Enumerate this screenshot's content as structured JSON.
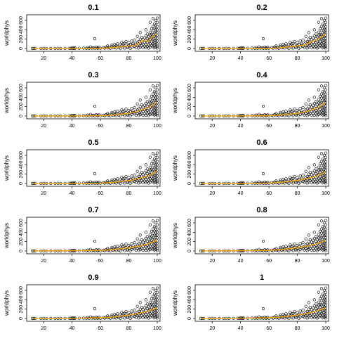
{
  "chart_data": {
    "type": "scatter",
    "ylabel": "worldphys",
    "xlim": [
      10,
      100
    ],
    "ylim": [
      0,
      660
    ],
    "xticks": [
      20,
      40,
      60,
      80,
      100
    ],
    "yticks": [
      0,
      200,
      400,
      600
    ],
    "colors": {
      "points": "#000000",
      "fit": "#ffa500",
      "frame": "#000000"
    },
    "panels": [
      {
        "title": "0.1",
        "fit": [
          [
            12,
            0
          ],
          [
            40,
            0
          ],
          [
            55,
            2
          ],
          [
            62,
            5
          ],
          [
            68,
            18
          ],
          [
            72,
            25
          ],
          [
            75,
            40
          ],
          [
            80,
            55
          ],
          [
            84,
            60
          ],
          [
            87,
            110
          ],
          [
            89,
            160
          ],
          [
            91,
            170
          ],
          [
            93,
            150
          ],
          [
            95,
            200
          ],
          [
            97,
            260
          ],
          [
            99,
            300
          ],
          [
            100,
            320
          ]
        ]
      },
      {
        "title": "0.2",
        "fit": [
          [
            12,
            0
          ],
          [
            40,
            0
          ],
          [
            56,
            3
          ],
          [
            64,
            8
          ],
          [
            70,
            22
          ],
          [
            75,
            40
          ],
          [
            80,
            55
          ],
          [
            85,
            75
          ],
          [
            88,
            120
          ],
          [
            90,
            150
          ],
          [
            92,
            160
          ],
          [
            95,
            210
          ],
          [
            97,
            250
          ],
          [
            100,
            310
          ]
        ]
      },
      {
        "title": "0.3",
        "fit": [
          [
            12,
            0
          ],
          [
            40,
            0
          ],
          [
            56,
            4
          ],
          [
            64,
            10
          ],
          [
            70,
            25
          ],
          [
            75,
            40
          ],
          [
            80,
            58
          ],
          [
            85,
            85
          ],
          [
            88,
            125
          ],
          [
            91,
            150
          ],
          [
            94,
            180
          ],
          [
            97,
            240
          ],
          [
            100,
            300
          ]
        ]
      },
      {
        "title": "0.4",
        "fit": [
          [
            12,
            0
          ],
          [
            40,
            2
          ],
          [
            56,
            5
          ],
          [
            64,
            12
          ],
          [
            70,
            28
          ],
          [
            76,
            45
          ],
          [
            82,
            65
          ],
          [
            86,
            95
          ],
          [
            89,
            125
          ],
          [
            92,
            150
          ],
          [
            95,
            190
          ],
          [
            98,
            250
          ],
          [
            100,
            290
          ]
        ]
      },
      {
        "title": "0.5",
        "fit": [
          [
            12,
            0
          ],
          [
            40,
            2
          ],
          [
            56,
            6
          ],
          [
            64,
            14
          ],
          [
            70,
            30
          ],
          [
            76,
            48
          ],
          [
            82,
            70
          ],
          [
            86,
            100
          ],
          [
            90,
            128
          ],
          [
            93,
            160
          ],
          [
            96,
            200
          ],
          [
            100,
            270
          ]
        ]
      },
      {
        "title": "0.6",
        "fit": [
          [
            12,
            0
          ],
          [
            40,
            3
          ],
          [
            56,
            8
          ],
          [
            64,
            16
          ],
          [
            70,
            32
          ],
          [
            76,
            50
          ],
          [
            82,
            75
          ],
          [
            87,
            105
          ],
          [
            91,
            135
          ],
          [
            95,
            175
          ],
          [
            100,
            250
          ]
        ]
      },
      {
        "title": "0.7",
        "fit": [
          [
            12,
            1
          ],
          [
            40,
            4
          ],
          [
            56,
            10
          ],
          [
            64,
            18
          ],
          [
            70,
            33
          ],
          [
            76,
            52
          ],
          [
            82,
            78
          ],
          [
            88,
            110
          ],
          [
            92,
            140
          ],
          [
            96,
            180
          ],
          [
            100,
            240
          ]
        ]
      },
      {
        "title": "0.8",
        "fit": [
          [
            12,
            1
          ],
          [
            40,
            5
          ],
          [
            56,
            11
          ],
          [
            64,
            20
          ],
          [
            70,
            35
          ],
          [
            76,
            54
          ],
          [
            82,
            80
          ],
          [
            88,
            112
          ],
          [
            92,
            142
          ],
          [
            96,
            182
          ],
          [
            100,
            230
          ]
        ]
      },
      {
        "title": "0.9",
        "fit": [
          [
            12,
            2
          ],
          [
            40,
            6
          ],
          [
            56,
            12
          ],
          [
            64,
            21
          ],
          [
            70,
            36
          ],
          [
            76,
            56
          ],
          [
            82,
            82
          ],
          [
            88,
            115
          ],
          [
            92,
            145
          ],
          [
            96,
            185
          ],
          [
            100,
            225
          ]
        ]
      },
      {
        "title": "1",
        "fit": [
          [
            12,
            3
          ],
          [
            40,
            7
          ],
          [
            56,
            13
          ],
          [
            64,
            22
          ],
          [
            70,
            37
          ],
          [
            76,
            57
          ],
          [
            82,
            83
          ],
          [
            88,
            116
          ],
          [
            92,
            147
          ],
          [
            96,
            186
          ],
          [
            100,
            220
          ]
        ]
      }
    ],
    "points": [
      [
        12,
        2
      ],
      [
        13,
        1
      ],
      [
        14,
        2
      ],
      [
        18,
        1
      ],
      [
        20,
        2
      ],
      [
        22,
        1
      ],
      [
        25,
        2
      ],
      [
        28,
        1
      ],
      [
        30,
        3
      ],
      [
        32,
        2
      ],
      [
        35,
        3
      ],
      [
        38,
        5
      ],
      [
        39,
        3
      ],
      [
        40,
        10
      ],
      [
        40,
        6
      ],
      [
        41,
        4
      ],
      [
        41,
        8
      ],
      [
        42,
        3
      ],
      [
        42,
        12
      ],
      [
        45,
        5
      ],
      [
        48,
        7
      ],
      [
        50,
        4
      ],
      [
        51,
        20
      ],
      [
        52,
        2
      ],
      [
        53,
        35
      ],
      [
        54,
        8
      ],
      [
        55,
        15
      ],
      [
        56,
        210
      ],
      [
        56,
        5
      ],
      [
        57,
        28
      ],
      [
        58,
        12
      ],
      [
        58,
        3
      ],
      [
        59,
        25
      ],
      [
        60,
        5
      ],
      [
        62,
        18
      ],
      [
        63,
        8
      ],
      [
        64,
        30
      ],
      [
        65,
        55
      ],
      [
        65,
        12
      ],
      [
        66,
        22
      ],
      [
        67,
        6
      ],
      [
        68,
        40
      ],
      [
        68,
        75
      ],
      [
        69,
        15
      ],
      [
        70,
        90
      ],
      [
        70,
        30
      ],
      [
        71,
        60
      ],
      [
        71,
        10
      ],
      [
        72,
        100
      ],
      [
        72,
        45
      ],
      [
        73,
        20
      ],
      [
        74,
        80
      ],
      [
        74,
        5
      ],
      [
        75,
        130
      ],
      [
        75,
        60
      ],
      [
        76,
        35
      ],
      [
        76,
        100
      ],
      [
        77,
        110
      ],
      [
        77,
        10
      ],
      [
        78,
        75
      ],
      [
        78,
        150
      ],
      [
        79,
        40
      ],
      [
        79,
        20
      ],
      [
        80,
        120
      ],
      [
        80,
        60
      ],
      [
        81,
        90
      ],
      [
        81,
        5
      ],
      [
        82,
        160
      ],
      [
        82,
        30
      ],
      [
        83,
        70
      ],
      [
        83,
        110
      ],
      [
        84,
        180
      ],
      [
        84,
        45
      ],
      [
        85,
        95
      ],
      [
        85,
        20
      ],
      [
        86,
        260
      ],
      [
        86,
        130
      ],
      [
        86,
        60
      ],
      [
        87,
        150
      ],
      [
        87,
        80
      ],
      [
        87,
        10
      ],
      [
        88,
        340
      ],
      [
        88,
        200
      ],
      [
        88,
        110
      ],
      [
        88,
        30
      ],
      [
        89,
        240
      ],
      [
        89,
        140
      ],
      [
        89,
        60
      ],
      [
        90,
        190
      ],
      [
        90,
        95
      ],
      [
        90,
        20
      ],
      [
        91,
        230
      ],
      [
        91,
        130
      ],
      [
        91,
        50
      ],
      [
        92,
        400
      ],
      [
        92,
        270
      ],
      [
        92,
        170
      ],
      [
        92,
        90
      ],
      [
        92,
        15
      ],
      [
        93,
        310
      ],
      [
        93,
        210
      ],
      [
        93,
        120
      ],
      [
        93,
        45
      ],
      [
        94,
        250
      ],
      [
        94,
        160
      ],
      [
        94,
        80
      ],
      [
        94,
        10
      ],
      [
        95,
        560
      ],
      [
        95,
        350
      ],
      [
        95,
        280
      ],
      [
        95,
        190
      ],
      [
        95,
        100
      ],
      [
        95,
        30
      ],
      [
        96,
        420
      ],
      [
        96,
        300
      ],
      [
        96,
        220
      ],
      [
        96,
        140
      ],
      [
        96,
        60
      ],
      [
        97,
        640
      ],
      [
        97,
        470
      ],
      [
        97,
        380
      ],
      [
        97,
        290
      ],
      [
        97,
        200
      ],
      [
        97,
        110
      ],
      [
        97,
        40
      ],
      [
        98,
        520
      ],
      [
        98,
        430
      ],
      [
        98,
        340
      ],
      [
        98,
        260
      ],
      [
        98,
        180
      ],
      [
        98,
        120
      ],
      [
        98,
        70
      ],
      [
        98,
        20
      ],
      [
        99,
        600
      ],
      [
        99,
        500
      ],
      [
        99,
        410
      ],
      [
        99,
        330
      ],
      [
        99,
        250
      ],
      [
        99,
        170
      ],
      [
        99,
        90
      ],
      [
        99,
        30
      ],
      [
        100,
        650
      ],
      [
        100,
        560
      ],
      [
        100,
        470
      ],
      [
        100,
        400
      ],
      [
        100,
        340
      ],
      [
        100,
        280
      ],
      [
        100,
        220
      ],
      [
        100,
        160
      ],
      [
        100,
        100
      ],
      [
        100,
        50
      ],
      [
        100,
        10
      ]
    ]
  }
}
